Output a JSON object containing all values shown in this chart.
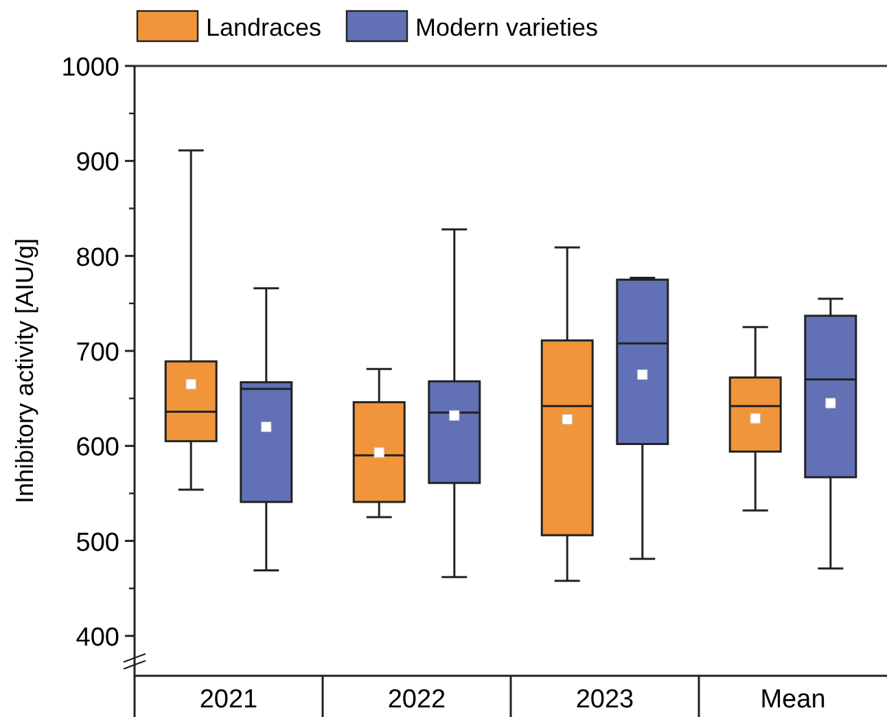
{
  "chart_data": {
    "type": "box",
    "ylabel": "Inhibitory activity [AIU/g]",
    "categories": [
      "2021",
      "2022",
      "2023",
      "Mean"
    ],
    "ylim": [
      358,
      1000
    ],
    "yticks": [
      400,
      500,
      600,
      700,
      800,
      900,
      1000
    ],
    "legend": "top",
    "marker": "square",
    "series": [
      {
        "name": "Landraces",
        "color": "#f0953a",
        "boxes": [
          {
            "low": 554,
            "q1": 605,
            "median": 636,
            "q3": 689,
            "high": 911,
            "mean": 665
          },
          {
            "low": 525,
            "q1": 541,
            "median": 590,
            "q3": 646,
            "high": 681,
            "mean": 593
          },
          {
            "low": 458,
            "q1": 506,
            "median": 642,
            "q3": 711,
            "high": 809,
            "mean": 628
          },
          {
            "low": 532,
            "q1": 594,
            "median": 642,
            "q3": 672,
            "high": 725,
            "mean": 629
          }
        ]
      },
      {
        "name": "Modern varieties",
        "color": "#6270b5",
        "boxes": [
          {
            "low": 469,
            "q1": 541,
            "median": 660,
            "q3": 667,
            "high": 766,
            "mean": 620
          },
          {
            "low": 462,
            "q1": 561,
            "median": 635,
            "q3": 668,
            "high": 828,
            "mean": 632
          },
          {
            "low": 481,
            "q1": 602,
            "median": 708,
            "q3": 775,
            "high": 777,
            "mean": 675
          },
          {
            "low": 471,
            "q1": 567,
            "median": 670,
            "q3": 737,
            "high": 755,
            "mean": 645
          }
        ]
      }
    ]
  }
}
